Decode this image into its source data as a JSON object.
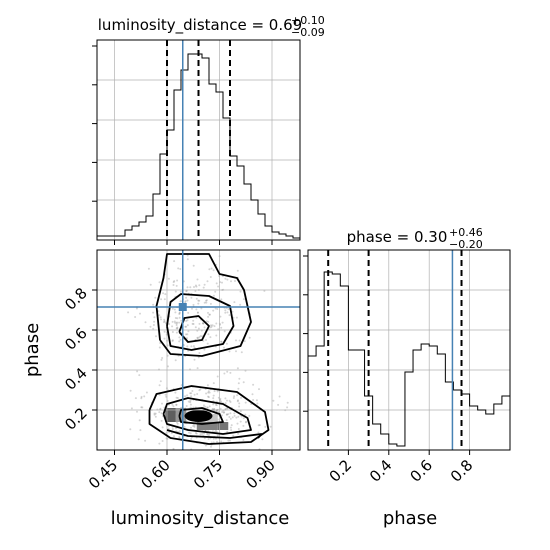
{
  "chart_data": [
    {
      "type": "histogram",
      "panel": "luminosity_distance-marginal",
      "title_label": "luminosity_distance = 0.69",
      "title_sup": "+0.10",
      "title_sub": "−0.09",
      "xlim": [
        0.4,
        0.98
      ],
      "ylim": [
        0,
        1.0
      ],
      "bin_edges": [
        0.4,
        0.42,
        0.44,
        0.46,
        0.48,
        0.5,
        0.52,
        0.54,
        0.56,
        0.58,
        0.6,
        0.62,
        0.64,
        0.66,
        0.68,
        0.7,
        0.72,
        0.74,
        0.76,
        0.78,
        0.8,
        0.82,
        0.84,
        0.86,
        0.88,
        0.9,
        0.92,
        0.94,
        0.96,
        0.98
      ],
      "counts": [
        0.02,
        0.02,
        0.02,
        0.02,
        0.05,
        0.07,
        0.09,
        0.12,
        0.23,
        0.43,
        0.55,
        0.75,
        0.85,
        0.93,
        0.93,
        0.91,
        0.78,
        0.74,
        0.61,
        0.42,
        0.37,
        0.28,
        0.2,
        0.13,
        0.07,
        0.04,
        0.03,
        0.02,
        0.01
      ],
      "quantiles": [
        0.6,
        0.69,
        0.78
      ],
      "truth": 0.645
    },
    {
      "type": "contour-2d",
      "panel": "phase-vs-luminosity_distance",
      "xlabel": "luminosity_distance",
      "ylabel": "phase",
      "xlim": [
        0.4,
        0.98
      ],
      "ylim": [
        0.0,
        1.0
      ],
      "xticks": [
        "0.45",
        "0.60",
        "0.75",
        "0.90"
      ],
      "xtick_values": [
        0.45,
        0.6,
        0.75,
        0.9
      ],
      "yticks": [
        "0.2",
        "0.4",
        "0.6",
        "0.8"
      ],
      "ytick_values": [
        0.2,
        0.4,
        0.6,
        0.8
      ],
      "truth": [
        0.645,
        0.715
      ],
      "density_cells": [
        {
          "x": [
            0.655,
            0.685
          ],
          "y": [
            0.17,
            0.21
          ],
          "shade": 0.05
        },
        {
          "x": [
            0.685,
            0.715
          ],
          "y": [
            0.14,
            0.21
          ],
          "shade": 0.1
        },
        {
          "x": [
            0.715,
            0.745
          ],
          "y": [
            0.14,
            0.18
          ],
          "shade": 0.25
        },
        {
          "x": [
            0.625,
            0.655
          ],
          "y": [
            0.14,
            0.21
          ],
          "shade": 0.45
        },
        {
          "x": [
            0.745,
            0.775
          ],
          "y": [
            0.1,
            0.14
          ],
          "shade": 0.6
        },
        {
          "x": [
            0.595,
            0.625
          ],
          "y": [
            0.14,
            0.21
          ],
          "shade": 0.7
        },
        {
          "x": [
            0.685,
            0.745
          ],
          "y": [
            0.1,
            0.14
          ],
          "shade": 0.55
        }
      ],
      "contour_levels": [
        {
          "name": "upper-inner",
          "points": [
            [
              0.635,
              0.59
            ],
            [
              0.65,
              0.66
            ],
            [
              0.69,
              0.67
            ],
            [
              0.72,
              0.62
            ],
            [
              0.7,
              0.55
            ],
            [
              0.66,
              0.54
            ],
            [
              0.635,
              0.59
            ]
          ]
        },
        {
          "name": "upper-middle",
          "points": [
            [
              0.6,
              0.62
            ],
            [
              0.61,
              0.74
            ],
            [
              0.64,
              0.78
            ],
            [
              0.72,
              0.77
            ],
            [
              0.78,
              0.72
            ],
            [
              0.79,
              0.62
            ],
            [
              0.76,
              0.53
            ],
            [
              0.67,
              0.5
            ],
            [
              0.61,
              0.52
            ],
            [
              0.6,
              0.62
            ]
          ]
        },
        {
          "name": "upper-outer",
          "points": [
            [
              0.58,
              0.55
            ],
            [
              0.57,
              0.72
            ],
            [
              0.59,
              0.86
            ],
            [
              0.6,
              0.98
            ],
            [
              0.72,
              0.98
            ],
            [
              0.75,
              0.88
            ],
            [
              0.8,
              0.86
            ],
            [
              0.82,
              0.8
            ],
            [
              0.84,
              0.64
            ],
            [
              0.81,
              0.52
            ],
            [
              0.7,
              0.47
            ],
            [
              0.61,
              0.48
            ],
            [
              0.58,
              0.55
            ]
          ]
        },
        {
          "name": "lower-inner",
          "points": [
            [
              0.635,
              0.17
            ],
            [
              0.64,
              0.2
            ],
            [
              0.7,
              0.21
            ],
            [
              0.75,
              0.18
            ],
            [
              0.76,
              0.14
            ],
            [
              0.7,
              0.13
            ],
            [
              0.64,
              0.14
            ],
            [
              0.635,
              0.17
            ]
          ]
        },
        {
          "name": "lower-middle",
          "points": [
            [
              0.59,
              0.18
            ],
            [
              0.6,
              0.23
            ],
            [
              0.66,
              0.26
            ],
            [
              0.76,
              0.23
            ],
            [
              0.83,
              0.16
            ],
            [
              0.84,
              0.1
            ],
            [
              0.76,
              0.08
            ],
            [
              0.66,
              0.1
            ],
            [
              0.6,
              0.13
            ],
            [
              0.59,
              0.18
            ]
          ]
        },
        {
          "name": "lower-outer",
          "points": [
            [
              0.55,
              0.2
            ],
            [
              0.57,
              0.28
            ],
            [
              0.67,
              0.32
            ],
            [
              0.8,
              0.29
            ],
            [
              0.88,
              0.19
            ],
            [
              0.89,
              0.1
            ],
            [
              0.84,
              0.04
            ],
            [
              0.72,
              0.03
            ],
            [
              0.61,
              0.06
            ],
            [
              0.55,
              0.13
            ],
            [
              0.55,
              0.2
            ]
          ]
        },
        {
          "name": "lower-outer-2",
          "points": [
            [
              0.6,
              0.1
            ],
            [
              0.66,
              0.07
            ],
            [
              0.78,
              0.06
            ],
            [
              0.87,
              0.08
            ],
            [
              0.86,
              0.06
            ]
          ]
        }
      ]
    },
    {
      "type": "histogram",
      "panel": "phase-marginal",
      "title_label": "phase = 0.30",
      "title_sup": "+0.46",
      "title_sub": "−0.20",
      "xlabel": "phase",
      "xlim": [
        0.0,
        1.0
      ],
      "ylim": [
        0,
        1.0
      ],
      "xticks": [
        "0.2",
        "0.4",
        "0.6",
        "0.8"
      ],
      "xtick_values": [
        0.2,
        0.4,
        0.6,
        0.8
      ],
      "bin_edges": [
        0.0,
        0.04,
        0.08,
        0.12,
        0.16,
        0.2,
        0.24,
        0.28,
        0.32,
        0.36,
        0.4,
        0.44,
        0.48,
        0.52,
        0.56,
        0.6,
        0.64,
        0.68,
        0.72,
        0.76,
        0.8,
        0.84,
        0.88,
        0.92,
        0.96,
        1.0
      ],
      "counts": [
        0.47,
        0.52,
        0.89,
        0.88,
        0.82,
        0.5,
        0.5,
        0.27,
        0.13,
        0.08,
        0.03,
        0.02,
        0.39,
        0.5,
        0.53,
        0.52,
        0.48,
        0.34,
        0.3,
        0.28,
        0.22,
        0.2,
        0.18,
        0.23,
        0.27
      ],
      "quantiles": [
        0.1,
        0.3,
        0.76
      ],
      "truth": 0.715
    }
  ],
  "colors": {
    "truth": "#4682b4",
    "grid": "#b0b0b0",
    "hist": "#000000",
    "scatter": "#888888"
  }
}
